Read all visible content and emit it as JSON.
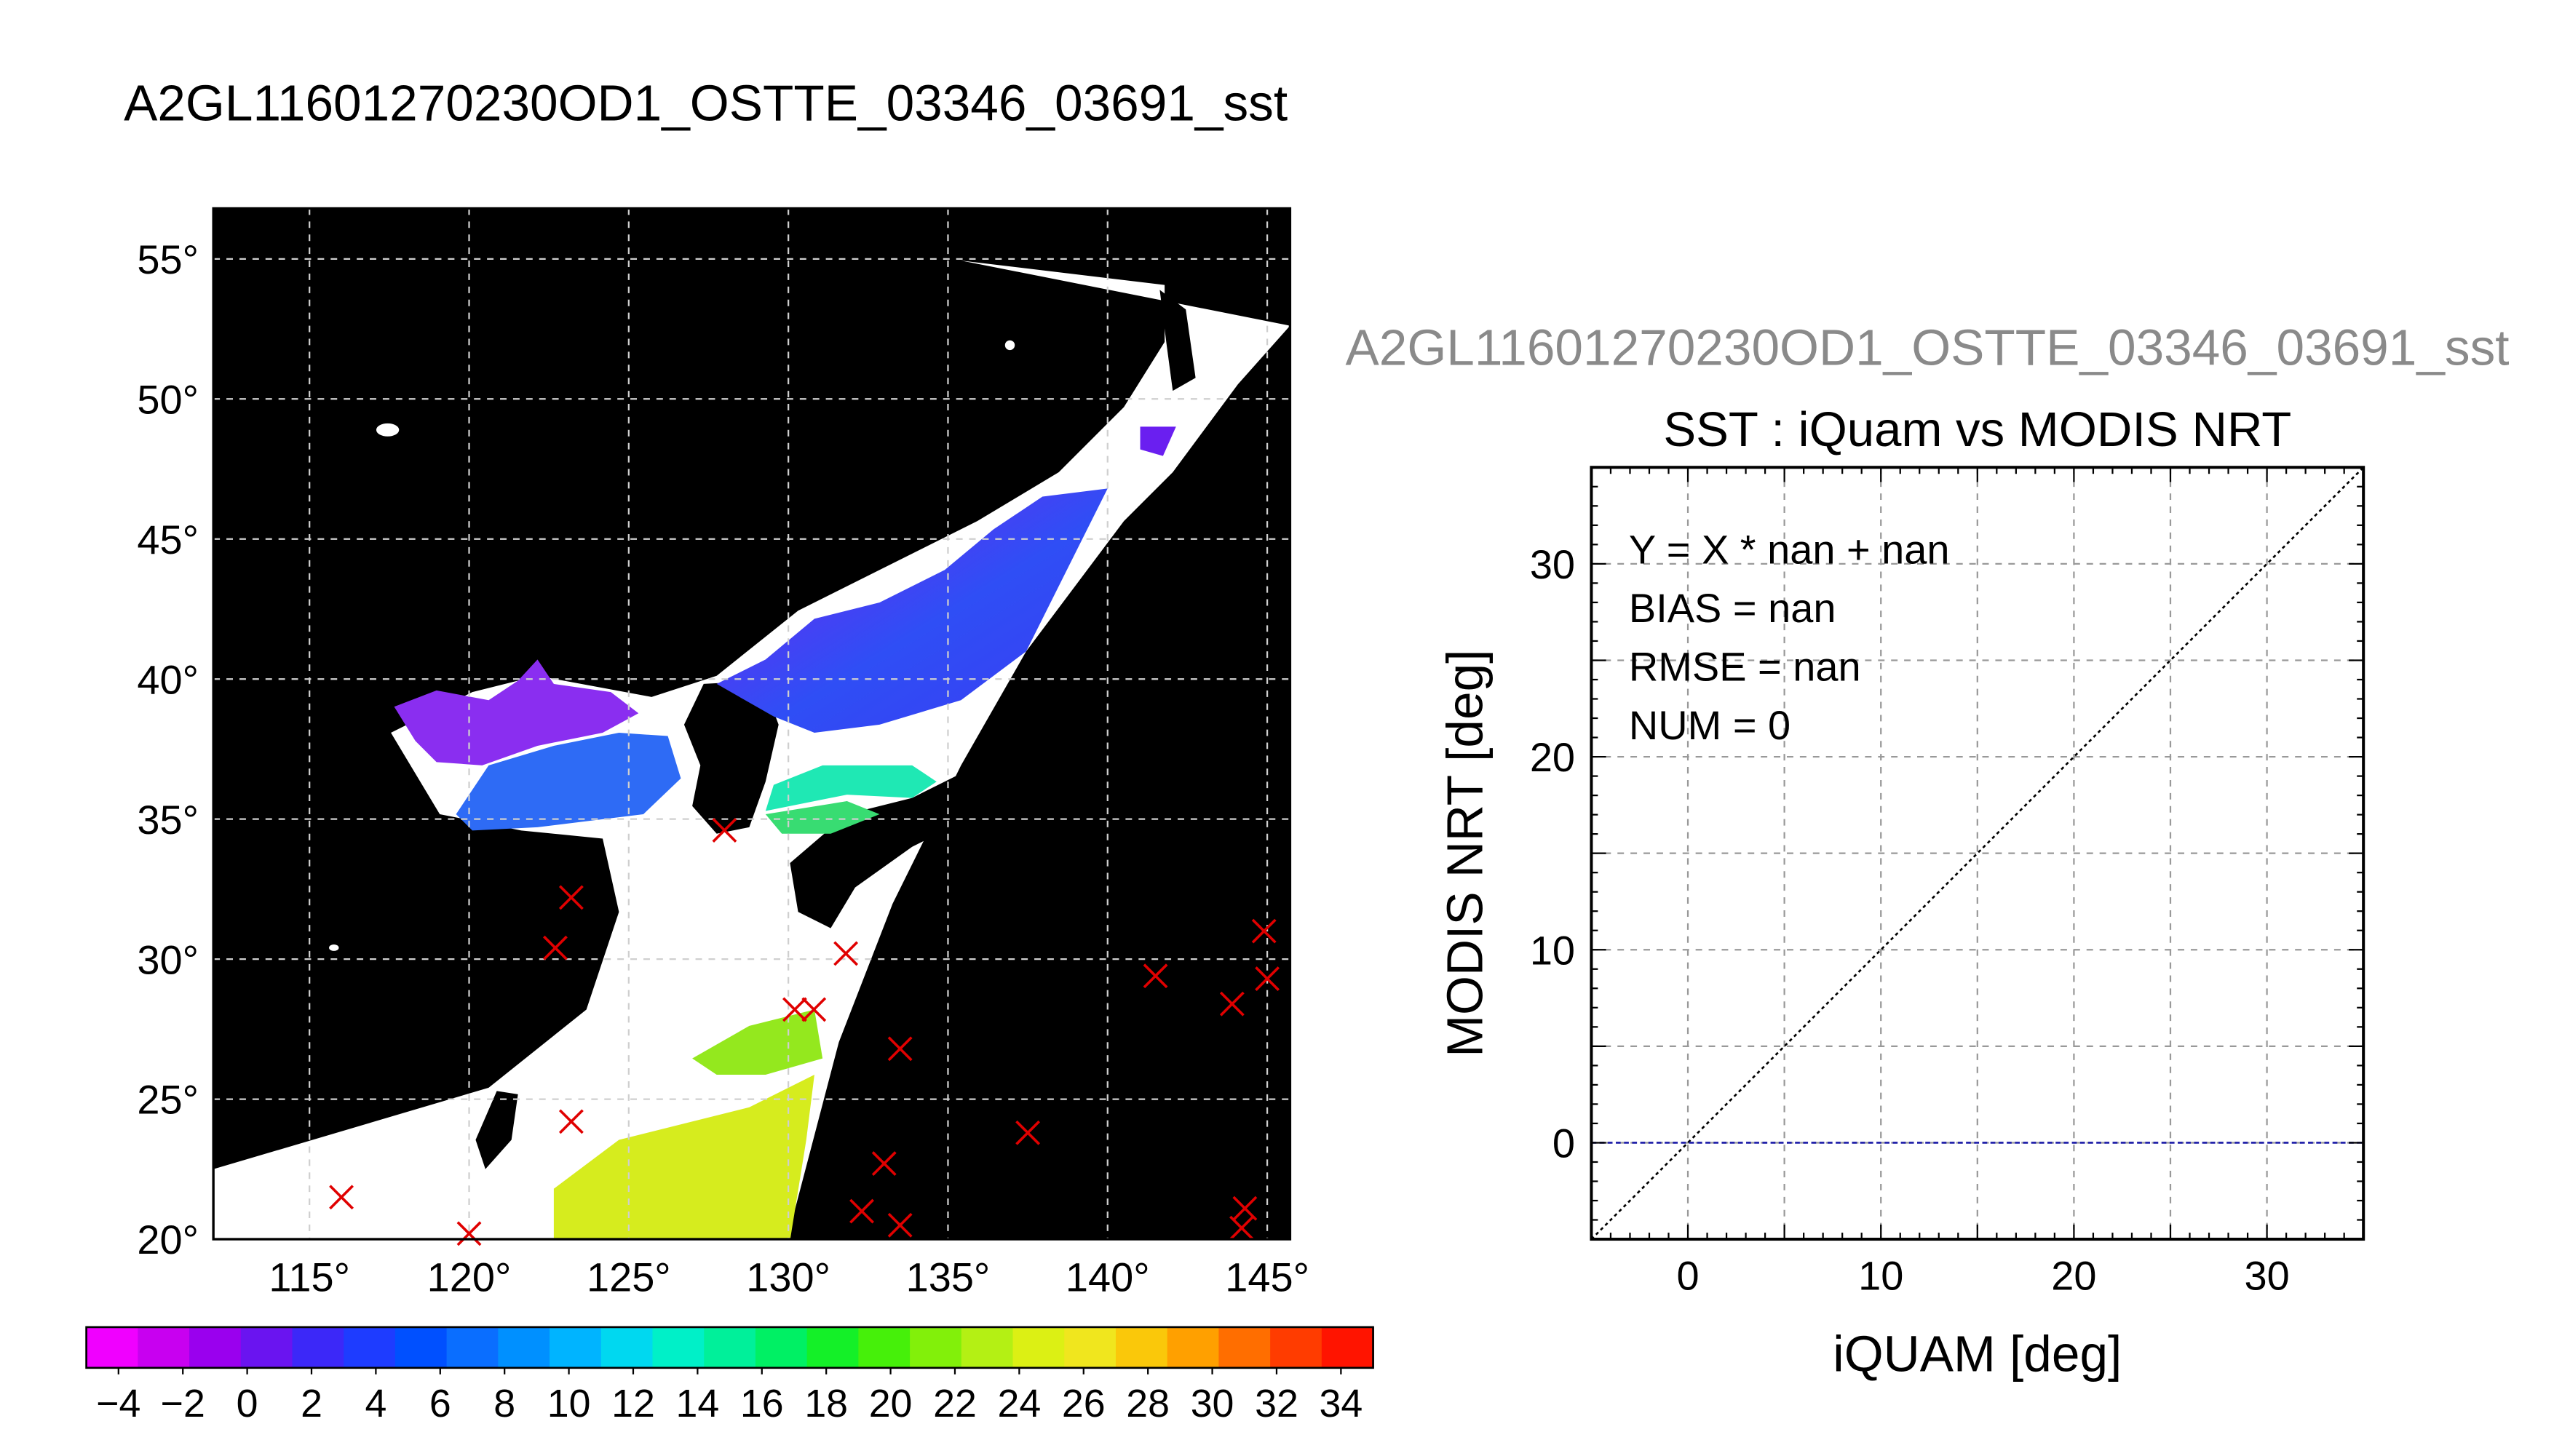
{
  "main_title": "A2GL11601270230OD1_OSTTE_03346_03691_sst",
  "map": {
    "lon_ticks": [
      "115°",
      "120°",
      "125°",
      "130°",
      "135°",
      "140°",
      "145°"
    ],
    "lat_ticks": [
      "20°",
      "25°",
      "30°",
      "35°",
      "40°",
      "45°",
      "50°",
      "55°"
    ],
    "colorbar_labels": [
      "−4",
      "−2",
      "0",
      "2",
      "4",
      "6",
      "8",
      "10",
      "12",
      "14",
      "16",
      "18",
      "20",
      "22",
      "24",
      "26",
      "28",
      "30",
      "32",
      "34"
    ],
    "colorbar_colors": [
      "#f000ff",
      "#c800f0",
      "#9a00ee",
      "#6a14f0",
      "#3c28f8",
      "#1e3cff",
      "#0050ff",
      "#0a6eff",
      "#0090ff",
      "#00b4ff",
      "#00d8f0",
      "#00f0c8",
      "#00f09a",
      "#00f064",
      "#14f028",
      "#46f00a",
      "#82f00a",
      "#b4f014",
      "#dcf014",
      "#f0e61e",
      "#fac80a",
      "#ffa000",
      "#ff6e00",
      "#ff3c00",
      "#ff1400"
    ],
    "buoys": [
      {
        "lon": 116.0,
        "lat": 21.5
      },
      {
        "lon": 120.0,
        "lat": 20.2
      },
      {
        "lon": 123.2,
        "lat": 32.2
      },
      {
        "lon": 122.7,
        "lat": 30.4
      },
      {
        "lon": 123.2,
        "lat": 24.2
      },
      {
        "lon": 128.0,
        "lat": 34.6
      },
      {
        "lon": 130.2,
        "lat": 28.2
      },
      {
        "lon": 130.8,
        "lat": 28.2
      },
      {
        "lon": 131.8,
        "lat": 30.2
      },
      {
        "lon": 133.5,
        "lat": 26.8
      },
      {
        "lon": 133.0,
        "lat": 22.7
      },
      {
        "lon": 132.3,
        "lat": 21.0
      },
      {
        "lon": 133.5,
        "lat": 20.5
      },
      {
        "lon": 137.5,
        "lat": 23.8
      },
      {
        "lon": 141.5,
        "lat": 29.4
      },
      {
        "lon": 143.9,
        "lat": 28.4
      },
      {
        "lon": 144.9,
        "lat": 31.0
      },
      {
        "lon": 145.0,
        "lat": 29.3
      },
      {
        "lon": 144.3,
        "lat": 21.1
      },
      {
        "lon": 144.2,
        "lat": 20.4
      }
    ]
  },
  "scatter_panel": {
    "header": "A2GL11601270230OD1_OSTTE_03346_03691_sst",
    "title": "SST : iQuam vs MODIS NRT",
    "xlabel": "iQUAM [deg]",
    "ylabel": "MODIS NRT [deg]",
    "stats": [
      "Y = X * nan + nan",
      "BIAS = nan",
      "RMSE = nan",
      "NUM = 0"
    ]
  },
  "chart_data": {
    "type": "scatter",
    "title": "SST : iQuam vs MODIS NRT",
    "xlabel": "iQUAM [deg]",
    "ylabel": "MODIS NRT [deg]",
    "xlim": [
      -5,
      35
    ],
    "ylim": [
      -5,
      35
    ],
    "x_ticks": [
      0,
      10,
      20,
      30
    ],
    "y_ticks": [
      0,
      10,
      20,
      30
    ],
    "grid": true,
    "series": [],
    "reference_lines": [
      {
        "kind": "identity",
        "style": "dotted",
        "color": "#000000"
      },
      {
        "kind": "horizontal",
        "y": 0,
        "style": "dashed",
        "color": "#1a1aa8"
      }
    ]
  },
  "colors": {
    "land": "#000000",
    "no_data": "#ffffff",
    "marker": "#e00000"
  }
}
